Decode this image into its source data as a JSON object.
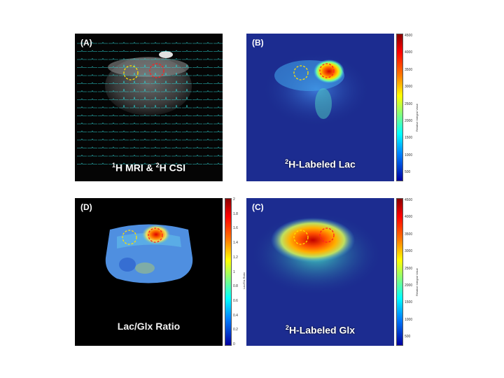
{
  "panels": {
    "a": {
      "label": "(A)",
      "caption_main_1": "1",
      "caption_main_2": "H MRI & ",
      "caption_main_3": "2",
      "caption_main_4": "H CSI"
    },
    "b": {
      "label": "(B)",
      "caption_sup": "2",
      "caption_text": "H-Labeled Lac",
      "colorbar": {
        "title": "Relative Integral Value",
        "ticks": [
          "4500",
          "4000",
          "3500",
          "3000",
          "2500",
          "2000",
          "1500",
          "1000",
          "500"
        ]
      }
    },
    "d": {
      "label": "(D)",
      "caption_text": "Lac/Glx Ratio",
      "colorbar": {
        "title": "Lac/Glx Ratio",
        "ticks": [
          "2",
          "1.8",
          "1.6",
          "1.4",
          "1.2",
          "1",
          "0.8",
          "0.6",
          "0.4",
          "0.2",
          "0"
        ]
      }
    },
    "c": {
      "label": "(C)",
      "caption_sup": "2",
      "caption_text": "H-Labeled Glx",
      "colorbar": {
        "title": "Relative Integral Value",
        "ticks": [
          "4500",
          "4000",
          "3500",
          "3000",
          "2500",
          "2000",
          "1500",
          "1000",
          "500"
        ]
      }
    }
  },
  "colors": {
    "roi_yellow": "#ffe000",
    "roi_red": "#ff2020",
    "grid_cyan": "#2fd0d0"
  }
}
